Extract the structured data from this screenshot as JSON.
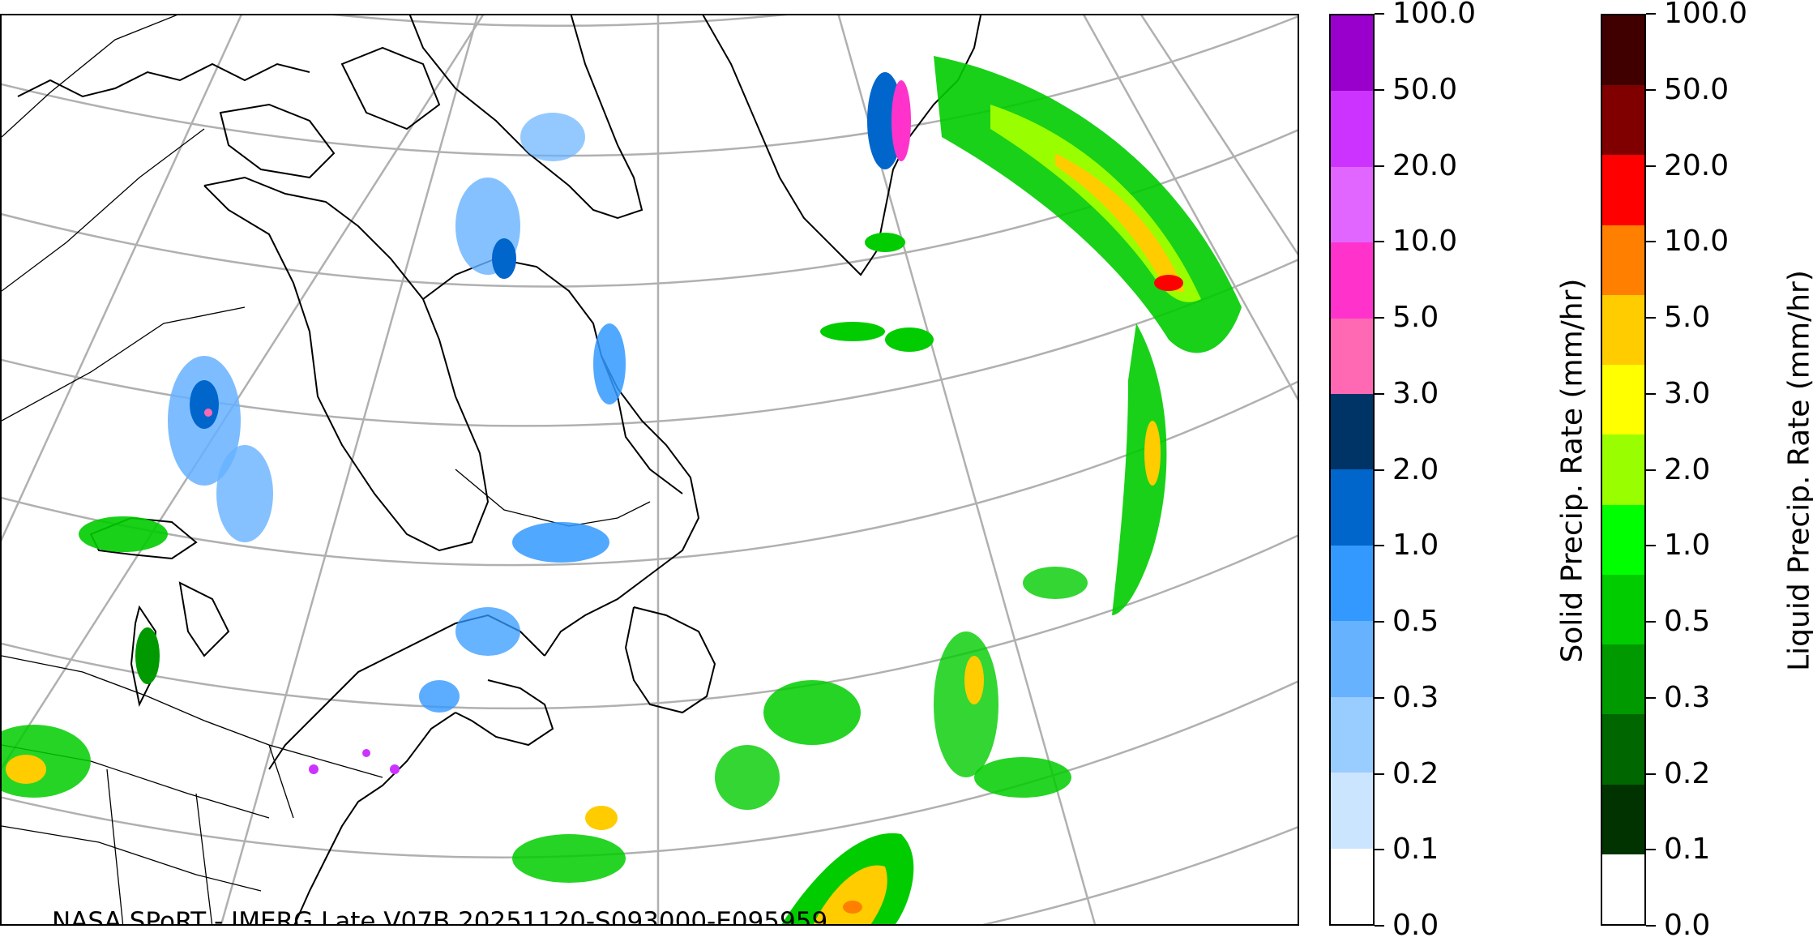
{
  "credit": "NASA SPoRT - IMERG Late V07B 20251120-S093000-E095959",
  "solid_colorbar": {
    "label": "Solid Precip. Rate (mm/hr)",
    "ticks": [
      "0.0",
      "0.1",
      "0.2",
      "0.3",
      "0.5",
      "1.0",
      "2.0",
      "3.0",
      "5.0",
      "10.0",
      "20.0",
      "50.0",
      "100.0"
    ],
    "colors": [
      "#ffffff",
      "#cce5ff",
      "#99ccff",
      "#66b2ff",
      "#3399ff",
      "#0066cc",
      "#003366",
      "#ff69b4",
      "#ff33cc",
      "#e066ff",
      "#cc33ff",
      "#9900cc"
    ]
  },
  "liquid_colorbar": {
    "label": "Liquid Precip. Rate (mm/hr)",
    "ticks": [
      "0.0",
      "0.1",
      "0.2",
      "0.3",
      "0.5",
      "1.0",
      "2.0",
      "3.0",
      "5.0",
      "10.0",
      "20.0",
      "50.0",
      "100.0"
    ],
    "colors": [
      "#ffffff",
      "#003300",
      "#006600",
      "#009900",
      "#00cc00",
      "#00ff00",
      "#99ff00",
      "#ffff00",
      "#ffcc00",
      "#ff8000",
      "#ff0000",
      "#800000",
      "#400000"
    ]
  },
  "map": {
    "features": [
      "graticule",
      "coastlines",
      "state-province-borders",
      "solid-precipitation",
      "liquid-precipitation"
    ],
    "colors": {
      "graticule": "#b0b0b0",
      "coastline": "#000000"
    }
  }
}
